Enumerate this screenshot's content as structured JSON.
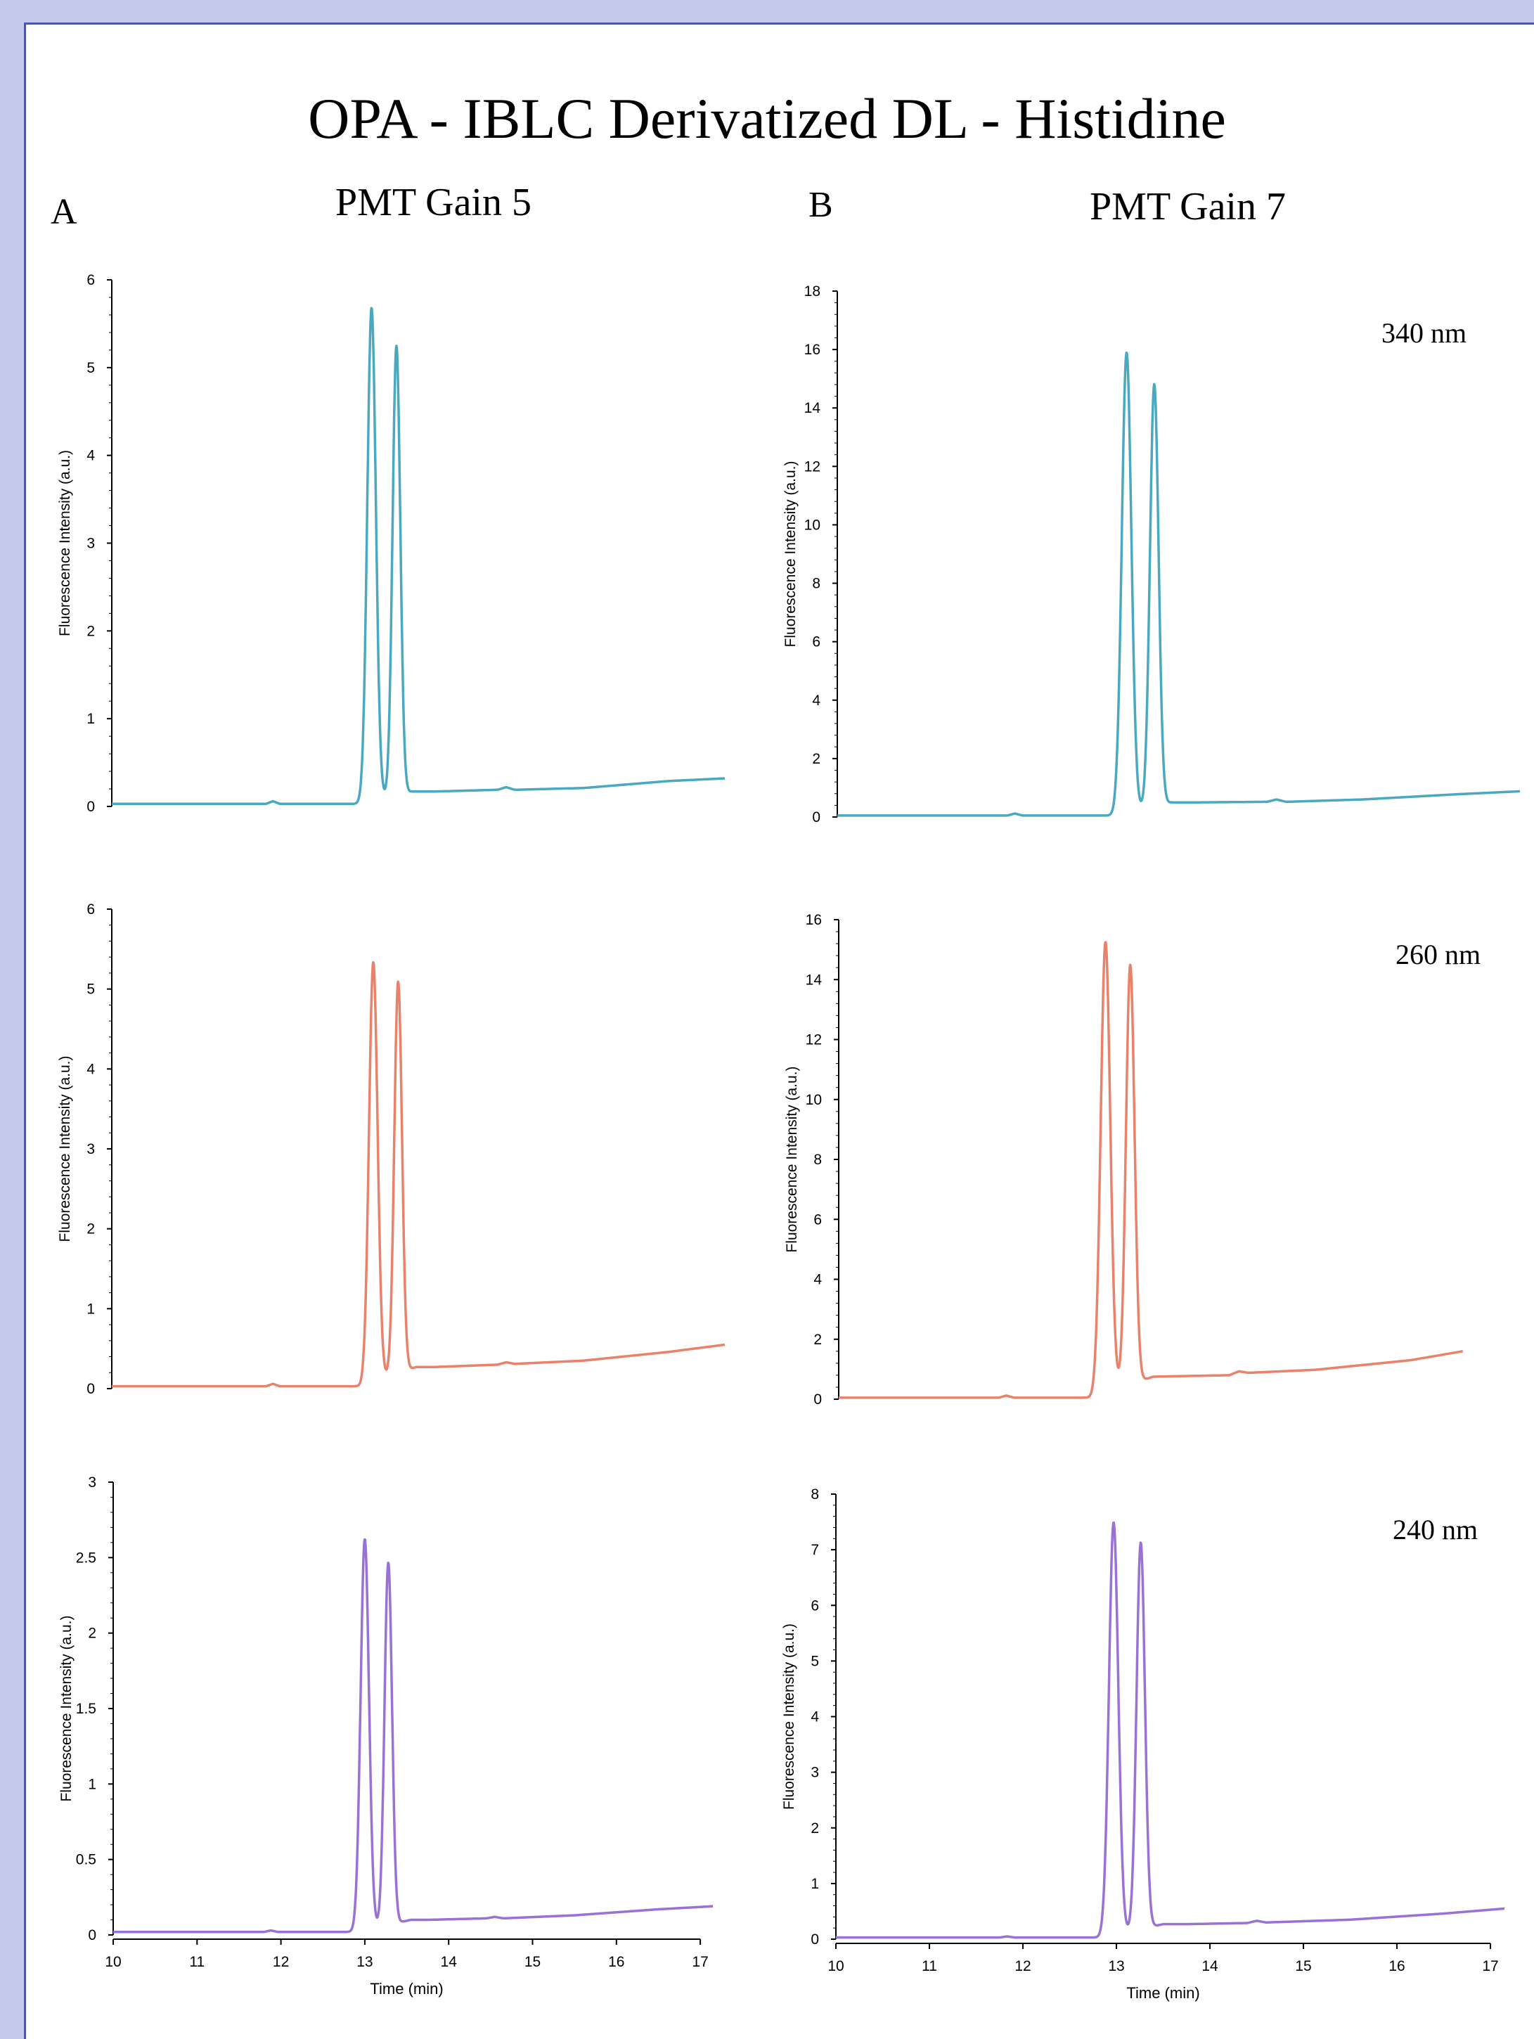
{
  "title": "OPA - IBLC Derivatized DL - Histidine",
  "panels": {
    "a_label": "A",
    "b_label": "B",
    "a_heading": "PMT Gain 5",
    "b_heading": "PMT Gain 7"
  },
  "colors": {
    "background": "#c4cbec",
    "border": "#4a57a6",
    "series_340": "#4aa8c0",
    "series_260": "#e8826a",
    "series_240": "#9a72d6"
  },
  "chart_data": [
    {
      "id": "A1",
      "type": "line",
      "column": "A",
      "wavelength": "",
      "color": "#4aa8c0",
      "ylabel": "Fluorescence Intensity (a.u.)",
      "xlabel": "",
      "xlim": [
        10,
        17.15
      ],
      "ylim": [
        0,
        6
      ],
      "yticks": [
        "0",
        "1",
        "2",
        "3",
        "4",
        "5",
        "6"
      ],
      "xticks": [],
      "peaks": [
        {
          "x": 13.03,
          "height": 5.62,
          "width": 0.05
        },
        {
          "x": 13.32,
          "height": 5.12,
          "width": 0.045
        }
      ],
      "baseline": [
        [
          10.0,
          0.03
        ],
        [
          11.8,
          0.03
        ],
        [
          11.88,
          0.06
        ],
        [
          11.96,
          0.03
        ],
        [
          12.9,
          0.03
        ],
        [
          13.5,
          0.17
        ],
        [
          13.75,
          0.17
        ],
        [
          14.5,
          0.19
        ],
        [
          14.6,
          0.22
        ],
        [
          14.7,
          0.19
        ],
        [
          15.5,
          0.21
        ],
        [
          16.5,
          0.29
        ],
        [
          17.15,
          0.32
        ]
      ]
    },
    {
      "id": "B1",
      "type": "line",
      "column": "B",
      "wavelength": "340 nm",
      "color": "#4aa8c0",
      "ylabel": "Fluorescence Intensity (a.u.)",
      "xlabel": "",
      "xlim": [
        10,
        17.15
      ],
      "ylim": [
        0,
        18
      ],
      "yticks": [
        "0",
        "2",
        "4",
        "6",
        "8",
        "10",
        "12",
        "14",
        "16",
        "18"
      ],
      "xticks": [],
      "peaks": [
        {
          "x": 13.03,
          "height": 15.75,
          "width": 0.05
        },
        {
          "x": 13.32,
          "height": 14.45,
          "width": 0.045
        }
      ],
      "baseline": [
        [
          10.0,
          0.05
        ],
        [
          11.78,
          0.05
        ],
        [
          11.86,
          0.12
        ],
        [
          11.94,
          0.05
        ],
        [
          12.9,
          0.05
        ],
        [
          13.5,
          0.5
        ],
        [
          13.75,
          0.5
        ],
        [
          14.5,
          0.52
        ],
        [
          14.6,
          0.6
        ],
        [
          14.7,
          0.52
        ],
        [
          15.5,
          0.6
        ],
        [
          16.5,
          0.78
        ],
        [
          17.15,
          0.88
        ]
      ]
    },
    {
      "id": "A2",
      "type": "line",
      "column": "A",
      "wavelength": "",
      "color": "#e8826a",
      "ylabel": "Fluorescence Intensity (a.u.)",
      "xlabel": "",
      "xlim": [
        10,
        17.15
      ],
      "ylim": [
        0,
        6
      ],
      "yticks": [
        "0",
        "1",
        "2",
        "3",
        "4",
        "5",
        "6"
      ],
      "xticks": [],
      "peaks": [
        {
          "x": 13.05,
          "height": 5.25,
          "width": 0.05
        },
        {
          "x": 13.34,
          "height": 4.9,
          "width": 0.045
        }
      ],
      "baseline": [
        [
          10.0,
          0.03
        ],
        [
          11.8,
          0.03
        ],
        [
          11.88,
          0.06
        ],
        [
          11.96,
          0.03
        ],
        [
          12.9,
          0.03
        ],
        [
          13.55,
          0.27
        ],
        [
          13.75,
          0.27
        ],
        [
          14.5,
          0.3
        ],
        [
          14.6,
          0.33
        ],
        [
          14.7,
          0.31
        ],
        [
          15.5,
          0.35
        ],
        [
          16.5,
          0.46
        ],
        [
          17.15,
          0.55
        ]
      ]
    },
    {
      "id": "B2",
      "type": "line",
      "column": "B",
      "wavelength": "260 nm",
      "color": "#e8826a",
      "ylabel": "Fluorescence Intensity (a.u.)",
      "xlabel": "",
      "xlim": [
        10,
        17.15
      ],
      "ylim": [
        0,
        16
      ],
      "yticks": [
        "0",
        "2",
        "4",
        "6",
        "8",
        "10",
        "12",
        "14",
        "16"
      ],
      "xticks": [],
      "xend": 16.55,
      "peaks": [
        {
          "x": 12.8,
          "height": 15.05,
          "width": 0.05
        },
        {
          "x": 13.06,
          "height": 14.0,
          "width": 0.045
        }
      ],
      "baseline": [
        [
          10.0,
          0.05
        ],
        [
          11.68,
          0.05
        ],
        [
          11.76,
          0.12
        ],
        [
          11.84,
          0.05
        ],
        [
          12.65,
          0.05
        ],
        [
          13.3,
          0.75
        ],
        [
          13.6,
          0.77
        ],
        [
          14.1,
          0.8
        ],
        [
          14.2,
          0.93
        ],
        [
          14.3,
          0.88
        ],
        [
          15.0,
          0.98
        ],
        [
          16.0,
          1.3
        ],
        [
          16.55,
          1.6
        ]
      ]
    },
    {
      "id": "A3",
      "type": "line",
      "column": "A",
      "wavelength": "",
      "color": "#9a72d6",
      "ylabel": "Fluorescence Intensity (a.u.)",
      "xlabel": "Time (min)",
      "xlim": [
        10,
        17.15
      ],
      "ylim": [
        0,
        3
      ],
      "yticks": [
        "0",
        "0.5",
        "1",
        "1.5",
        "2",
        "2.5",
        "3"
      ],
      "xticks": [
        "10",
        "11",
        "12",
        "13",
        "14",
        "15",
        "16",
        "17"
      ],
      "peaks": [
        {
          "x": 13.0,
          "height": 2.59,
          "width": 0.05
        },
        {
          "x": 13.28,
          "height": 2.4,
          "width": 0.045
        }
      ],
      "baseline": [
        [
          10.0,
          0.02
        ],
        [
          11.8,
          0.02
        ],
        [
          11.88,
          0.03
        ],
        [
          11.96,
          0.02
        ],
        [
          12.9,
          0.02
        ],
        [
          13.55,
          0.1
        ],
        [
          13.75,
          0.1
        ],
        [
          14.45,
          0.11
        ],
        [
          14.55,
          0.12
        ],
        [
          14.65,
          0.11
        ],
        [
          15.5,
          0.13
        ],
        [
          16.5,
          0.17
        ],
        [
          17.15,
          0.19
        ]
      ]
    },
    {
      "id": "B3",
      "type": "line",
      "column": "B",
      "wavelength": "240 nm",
      "color": "#9a72d6",
      "ylabel": "Fluorescence Intensity (a.u.)",
      "xlabel": "Time (min)",
      "xlim": [
        10,
        17.15
      ],
      "ylim": [
        0,
        8
      ],
      "yticks": [
        "0",
        "1",
        "2",
        "3",
        "4",
        "5",
        "6",
        "7",
        "8"
      ],
      "xticks": [
        "10",
        "11",
        "12",
        "13",
        "14",
        "15",
        "16",
        "17"
      ],
      "peaks": [
        {
          "x": 12.97,
          "height": 7.42,
          "width": 0.05
        },
        {
          "x": 13.26,
          "height": 6.95,
          "width": 0.045
        }
      ],
      "baseline": [
        [
          10.0,
          0.03
        ],
        [
          11.75,
          0.03
        ],
        [
          11.83,
          0.05
        ],
        [
          11.91,
          0.03
        ],
        [
          12.85,
          0.03
        ],
        [
          13.5,
          0.27
        ],
        [
          13.75,
          0.27
        ],
        [
          14.4,
          0.29
        ],
        [
          14.5,
          0.33
        ],
        [
          14.6,
          0.3
        ],
        [
          15.5,
          0.35
        ],
        [
          16.5,
          0.46
        ],
        [
          17.15,
          0.55
        ]
      ]
    }
  ]
}
